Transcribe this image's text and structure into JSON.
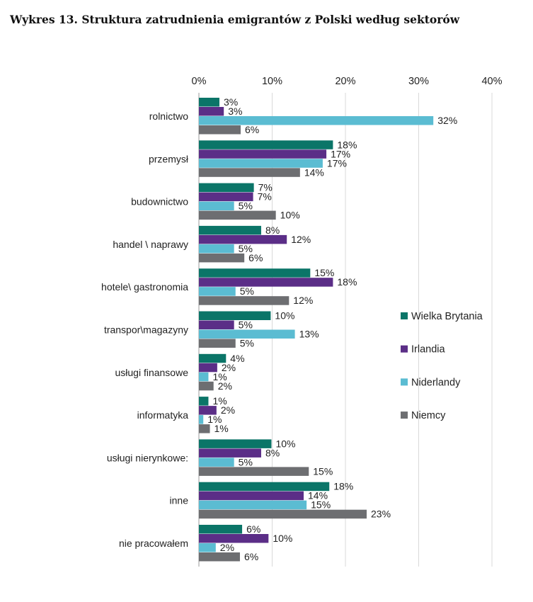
{
  "title": "Wykres  13.   Struktura zatrudnienia emigrantów z Polski według sektorów",
  "chart_data": {
    "type": "bar",
    "orientation": "horizontal",
    "title": "Wykres  13.   Struktura zatrudnienia emigrantów z Polski według sektorów",
    "xlabel": "",
    "ylabel": "",
    "xlim": [
      0,
      40
    ],
    "tick_values": [
      0,
      10,
      20,
      30,
      40
    ],
    "tick_labels": [
      "0%",
      "10%",
      "20%",
      "30%",
      "40%"
    ],
    "grid": true,
    "legend_position": "right",
    "value_suffix": "%",
    "categories": [
      "rolnictwo",
      "przemysł",
      "budownictwo",
      "handel \\ naprawy",
      "hotele\\ gastronomia",
      "transpor\\magazyny",
      "usługi finansowe",
      "informatyka",
      "usługi nierynkowe:",
      "inne",
      "nie pracowałem"
    ],
    "series": [
      {
        "name": "Wielka Brytania",
        "color": "#0b7568",
        "values": [
          3,
          18,
          7,
          8,
          15,
          10,
          4,
          1,
          10,
          18,
          6
        ],
        "bar_values": [
          2.8,
          18.3,
          7.5,
          8.5,
          15.2,
          9.8,
          3.7,
          1.3,
          9.9,
          17.8,
          5.9
        ]
      },
      {
        "name": "Irlandia",
        "color": "#5b2e87",
        "values": [
          3,
          17,
          7,
          12,
          18,
          5,
          2,
          2,
          8,
          14,
          10
        ],
        "bar_values": [
          3.4,
          17.4,
          7.4,
          12.0,
          18.3,
          4.8,
          2.5,
          2.4,
          8.5,
          14.3,
          9.5
        ]
      },
      {
        "name": "Niderlandy",
        "color": "#5bbcd2",
        "values": [
          32,
          17,
          5,
          5,
          5,
          13,
          1,
          1,
          5,
          15,
          2
        ],
        "bar_values": [
          32.0,
          16.9,
          4.8,
          4.8,
          5.0,
          13.1,
          1.3,
          0.6,
          4.8,
          14.7,
          2.3
        ]
      },
      {
        "name": "Niemcy",
        "color": "#6d6e71",
        "values": [
          6,
          14,
          10,
          6,
          12,
          5,
          2,
          1,
          15,
          23,
          6
        ],
        "bar_values": [
          5.7,
          13.8,
          10.5,
          6.2,
          12.3,
          5.0,
          2.0,
          1.5,
          15.0,
          22.9,
          5.6
        ]
      }
    ]
  }
}
